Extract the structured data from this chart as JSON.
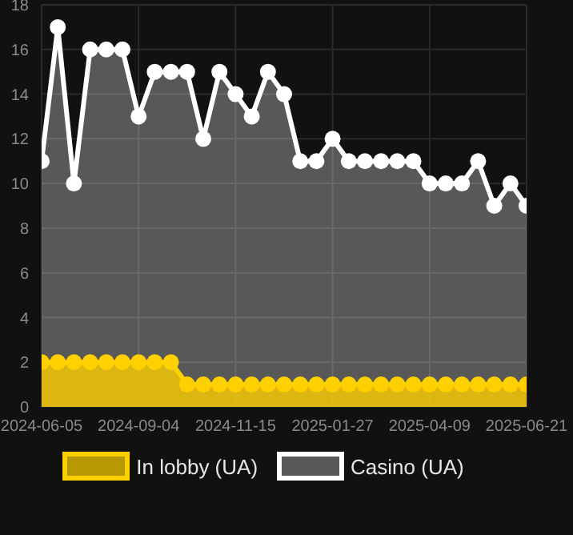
{
  "chart_data": {
    "type": "area",
    "categories": [
      "2024-06-05",
      null,
      null,
      null,
      null,
      null,
      "2024-09-04",
      null,
      null,
      null,
      null,
      null,
      "2024-11-15",
      null,
      null,
      null,
      null,
      null,
      "2025-01-27",
      null,
      null,
      null,
      null,
      null,
      "2025-04-09",
      null,
      null,
      null,
      null,
      null,
      "2025-06-21"
    ],
    "series": [
      {
        "name": "In lobby (UA)",
        "color": "#ffd000",
        "values": [
          2,
          2,
          2,
          2,
          2,
          2,
          2,
          2,
          2,
          1,
          1,
          1,
          1,
          1,
          1,
          1,
          1,
          1,
          1,
          1,
          1,
          1,
          1,
          1,
          1,
          1,
          1,
          1,
          1,
          1,
          1
        ]
      },
      {
        "name": "Casino (UA)",
        "color": "#ffffff",
        "values": [
          11,
          17,
          10,
          16,
          16,
          16,
          13,
          15,
          15,
          15,
          12,
          15,
          14,
          13,
          15,
          14,
          11,
          11,
          12,
          11,
          11,
          11,
          11,
          11,
          10,
          10,
          10,
          11,
          9,
          10,
          9
        ]
      }
    ],
    "ylim": [
      0,
      18
    ],
    "yticks": [
      0,
      2,
      4,
      6,
      8,
      10,
      12,
      14,
      16,
      18
    ],
    "grid": true,
    "legend": "bottom",
    "marker": "circle"
  }
}
